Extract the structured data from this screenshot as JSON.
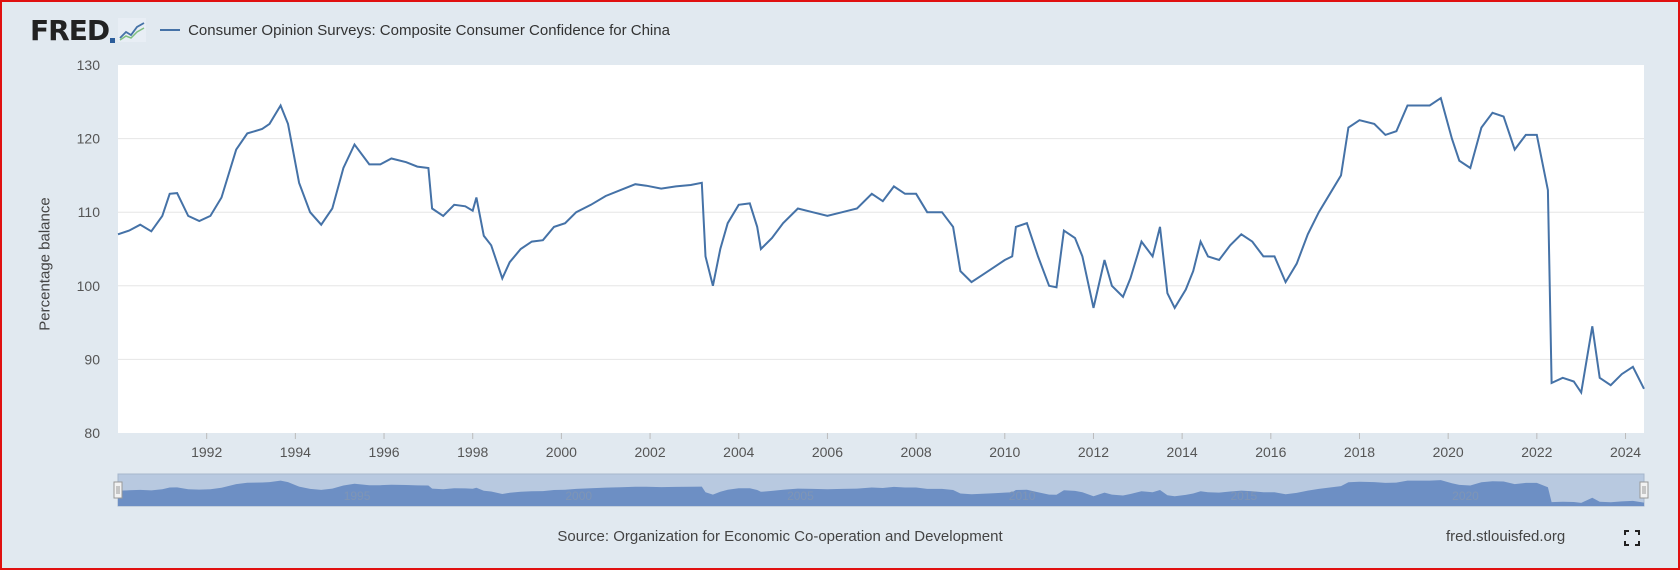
{
  "header": {
    "logo": "FRED",
    "legend_label": "Consumer Opinion Surveys: Composite Consumer Confidence for China"
  },
  "footer": {
    "source": "Source: Organization for Economic Co-operation and Development",
    "site": "fred.stlouisfed.org"
  },
  "navigator": {
    "tick_labels": [
      "1995",
      "2000",
      "2005",
      "2010",
      "2015",
      "2020"
    ]
  },
  "colors": {
    "line": "#4572a7",
    "navigator_fill": "#6d8fc4",
    "plot_bg": "#ffffff",
    "page_bg": "#e1e9f0"
  },
  "icons": {
    "fullscreen": "fullscreen-icon"
  },
  "chart_data": {
    "type": "line",
    "title": "",
    "xlabel": "",
    "ylabel": "Percentage balance",
    "ylim": [
      80,
      130
    ],
    "xlim": [
      "1990-01-01",
      "2024-06-01"
    ],
    "yticks": [
      80,
      90,
      100,
      110,
      120,
      130
    ],
    "xticks": [
      "1992",
      "1994",
      "1996",
      "1998",
      "2000",
      "2002",
      "2004",
      "2006",
      "2008",
      "2010",
      "2012",
      "2014",
      "2016",
      "2018",
      "2020",
      "2022",
      "2024"
    ],
    "grid": true,
    "legend": "top-left",
    "series": [
      {
        "name": "Consumer Opinion Surveys: Composite Consumer Confidence for China",
        "points": [
          [
            "1990-01-01",
            107.0
          ],
          [
            "1990-04-01",
            107.5
          ],
          [
            "1990-07-01",
            108.3
          ],
          [
            "1990-10-01",
            107.4
          ],
          [
            "1991-01-01",
            109.5
          ],
          [
            "1991-03-01",
            112.5
          ],
          [
            "1991-05-01",
            112.6
          ],
          [
            "1991-08-01",
            109.5
          ],
          [
            "1991-11-01",
            108.8
          ],
          [
            "1992-02-01",
            109.5
          ],
          [
            "1992-05-01",
            112.0
          ],
          [
            "1992-09-01",
            118.5
          ],
          [
            "1992-12-01",
            120.7
          ],
          [
            "1993-04-01",
            121.3
          ],
          [
            "1993-06-01",
            122.0
          ],
          [
            "1993-09-01",
            124.5
          ],
          [
            "1993-11-01",
            122.0
          ],
          [
            "1994-02-01",
            114.0
          ],
          [
            "1994-05-01",
            110.0
          ],
          [
            "1994-08-01",
            108.3
          ],
          [
            "1994-11-01",
            110.5
          ],
          [
            "1995-02-01",
            116.0
          ],
          [
            "1995-05-01",
            119.2
          ],
          [
            "1995-09-01",
            116.5
          ],
          [
            "1995-12-01",
            116.5
          ],
          [
            "1996-03-01",
            117.3
          ],
          [
            "1996-07-01",
            116.8
          ],
          [
            "1996-10-01",
            116.2
          ],
          [
            "1997-01-01",
            116.0
          ],
          [
            "1997-02-01",
            110.5
          ],
          [
            "1997-05-01",
            109.5
          ],
          [
            "1997-08-01",
            111.0
          ],
          [
            "1997-11-01",
            110.8
          ],
          [
            "1998-01-01",
            110.2
          ],
          [
            "1998-02-01",
            112.0
          ],
          [
            "1998-04-01",
            106.8
          ],
          [
            "1998-06-01",
            105.5
          ],
          [
            "1998-09-01",
            101.0
          ],
          [
            "1998-11-01",
            103.2
          ],
          [
            "1999-02-01",
            105.0
          ],
          [
            "1999-05-01",
            106.0
          ],
          [
            "1999-08-01",
            106.2
          ],
          [
            "1999-11-01",
            108.0
          ],
          [
            "2000-02-01",
            108.5
          ],
          [
            "2000-05-01",
            110.0
          ],
          [
            "2000-09-01",
            111.0
          ],
          [
            "2001-01-01",
            112.2
          ],
          [
            "2001-05-01",
            113.0
          ],
          [
            "2001-09-01",
            113.8
          ],
          [
            "2001-12-01",
            113.6
          ],
          [
            "2002-04-01",
            113.2
          ],
          [
            "2002-08-01",
            113.5
          ],
          [
            "2002-12-01",
            113.7
          ],
          [
            "2003-03-01",
            114.0
          ],
          [
            "2003-04-01",
            104.0
          ],
          [
            "2003-06-01",
            100.0
          ],
          [
            "2003-08-01",
            105.0
          ],
          [
            "2003-10-01",
            108.5
          ],
          [
            "2004-01-01",
            111.0
          ],
          [
            "2004-04-01",
            111.2
          ],
          [
            "2004-06-01",
            108.0
          ],
          [
            "2004-07-01",
            105.0
          ],
          [
            "2004-10-01",
            106.5
          ],
          [
            "2005-01-01",
            108.5
          ],
          [
            "2005-05-01",
            110.5
          ],
          [
            "2005-09-01",
            110.0
          ],
          [
            "2006-01-01",
            109.5
          ],
          [
            "2006-05-01",
            110.0
          ],
          [
            "2006-09-01",
            110.5
          ],
          [
            "2007-01-01",
            112.5
          ],
          [
            "2007-04-01",
            111.5
          ],
          [
            "2007-07-01",
            113.5
          ],
          [
            "2007-10-01",
            112.5
          ],
          [
            "2008-01-01",
            112.5
          ],
          [
            "2008-04-01",
            110.0
          ],
          [
            "2008-08-01",
            110.0
          ],
          [
            "2008-11-01",
            108.0
          ],
          [
            "2009-01-01",
            102.0
          ],
          [
            "2009-04-01",
            100.5
          ],
          [
            "2009-07-01",
            101.5
          ],
          [
            "2009-10-01",
            102.5
          ],
          [
            "2010-01-01",
            103.5
          ],
          [
            "2010-03-01",
            104.0
          ],
          [
            "2010-04-01",
            108.0
          ],
          [
            "2010-07-01",
            108.5
          ],
          [
            "2010-10-01",
            104.0
          ],
          [
            "2011-01-01",
            100.0
          ],
          [
            "2011-03-01",
            99.8
          ],
          [
            "2011-05-01",
            107.5
          ],
          [
            "2011-08-01",
            106.5
          ],
          [
            "2011-10-01",
            104.0
          ],
          [
            "2012-01-01",
            97.0
          ],
          [
            "2012-04-01",
            103.5
          ],
          [
            "2012-06-01",
            100.0
          ],
          [
            "2012-09-01",
            98.5
          ],
          [
            "2012-11-01",
            101.0
          ],
          [
            "2013-02-01",
            106.0
          ],
          [
            "2013-05-01",
            104.0
          ],
          [
            "2013-07-01",
            108.0
          ],
          [
            "2013-09-01",
            99.0
          ],
          [
            "2013-11-01",
            97.0
          ],
          [
            "2014-02-01",
            99.5
          ],
          [
            "2014-04-01",
            102.0
          ],
          [
            "2014-06-01",
            106.0
          ],
          [
            "2014-08-01",
            104.0
          ],
          [
            "2014-11-01",
            103.5
          ],
          [
            "2015-02-01",
            105.5
          ],
          [
            "2015-05-01",
            107.0
          ],
          [
            "2015-08-01",
            106.0
          ],
          [
            "2015-11-01",
            104.0
          ],
          [
            "2016-02-01",
            104.0
          ],
          [
            "2016-05-01",
            100.5
          ],
          [
            "2016-08-01",
            103.0
          ],
          [
            "2016-11-01",
            107.0
          ],
          [
            "2017-02-01",
            110.0
          ],
          [
            "2017-05-01",
            112.5
          ],
          [
            "2017-08-01",
            115.0
          ],
          [
            "2017-10-01",
            121.5
          ],
          [
            "2018-01-01",
            122.5
          ],
          [
            "2018-05-01",
            122.0
          ],
          [
            "2018-08-01",
            120.5
          ],
          [
            "2018-11-01",
            121.0
          ],
          [
            "2019-02-01",
            124.5
          ],
          [
            "2019-05-01",
            124.5
          ],
          [
            "2019-08-01",
            124.5
          ],
          [
            "2019-11-01",
            125.5
          ],
          [
            "2020-02-01",
            120.0
          ],
          [
            "2020-04-01",
            117.0
          ],
          [
            "2020-07-01",
            116.0
          ],
          [
            "2020-10-01",
            121.5
          ],
          [
            "2021-01-01",
            123.5
          ],
          [
            "2021-04-01",
            123.0
          ],
          [
            "2021-07-01",
            118.5
          ],
          [
            "2021-10-01",
            120.5
          ],
          [
            "2022-01-01",
            120.5
          ],
          [
            "2022-04-01",
            113.0
          ],
          [
            "2022-05-01",
            86.8
          ],
          [
            "2022-08-01",
            87.5
          ],
          [
            "2022-11-01",
            87.0
          ],
          [
            "2023-01-01",
            85.5
          ],
          [
            "2023-04-01",
            94.5
          ],
          [
            "2023-06-01",
            87.5
          ],
          [
            "2023-09-01",
            86.5
          ],
          [
            "2023-12-01",
            88.0
          ],
          [
            "2024-03-01",
            89.0
          ],
          [
            "2024-06-01",
            86.0
          ]
        ]
      }
    ]
  }
}
